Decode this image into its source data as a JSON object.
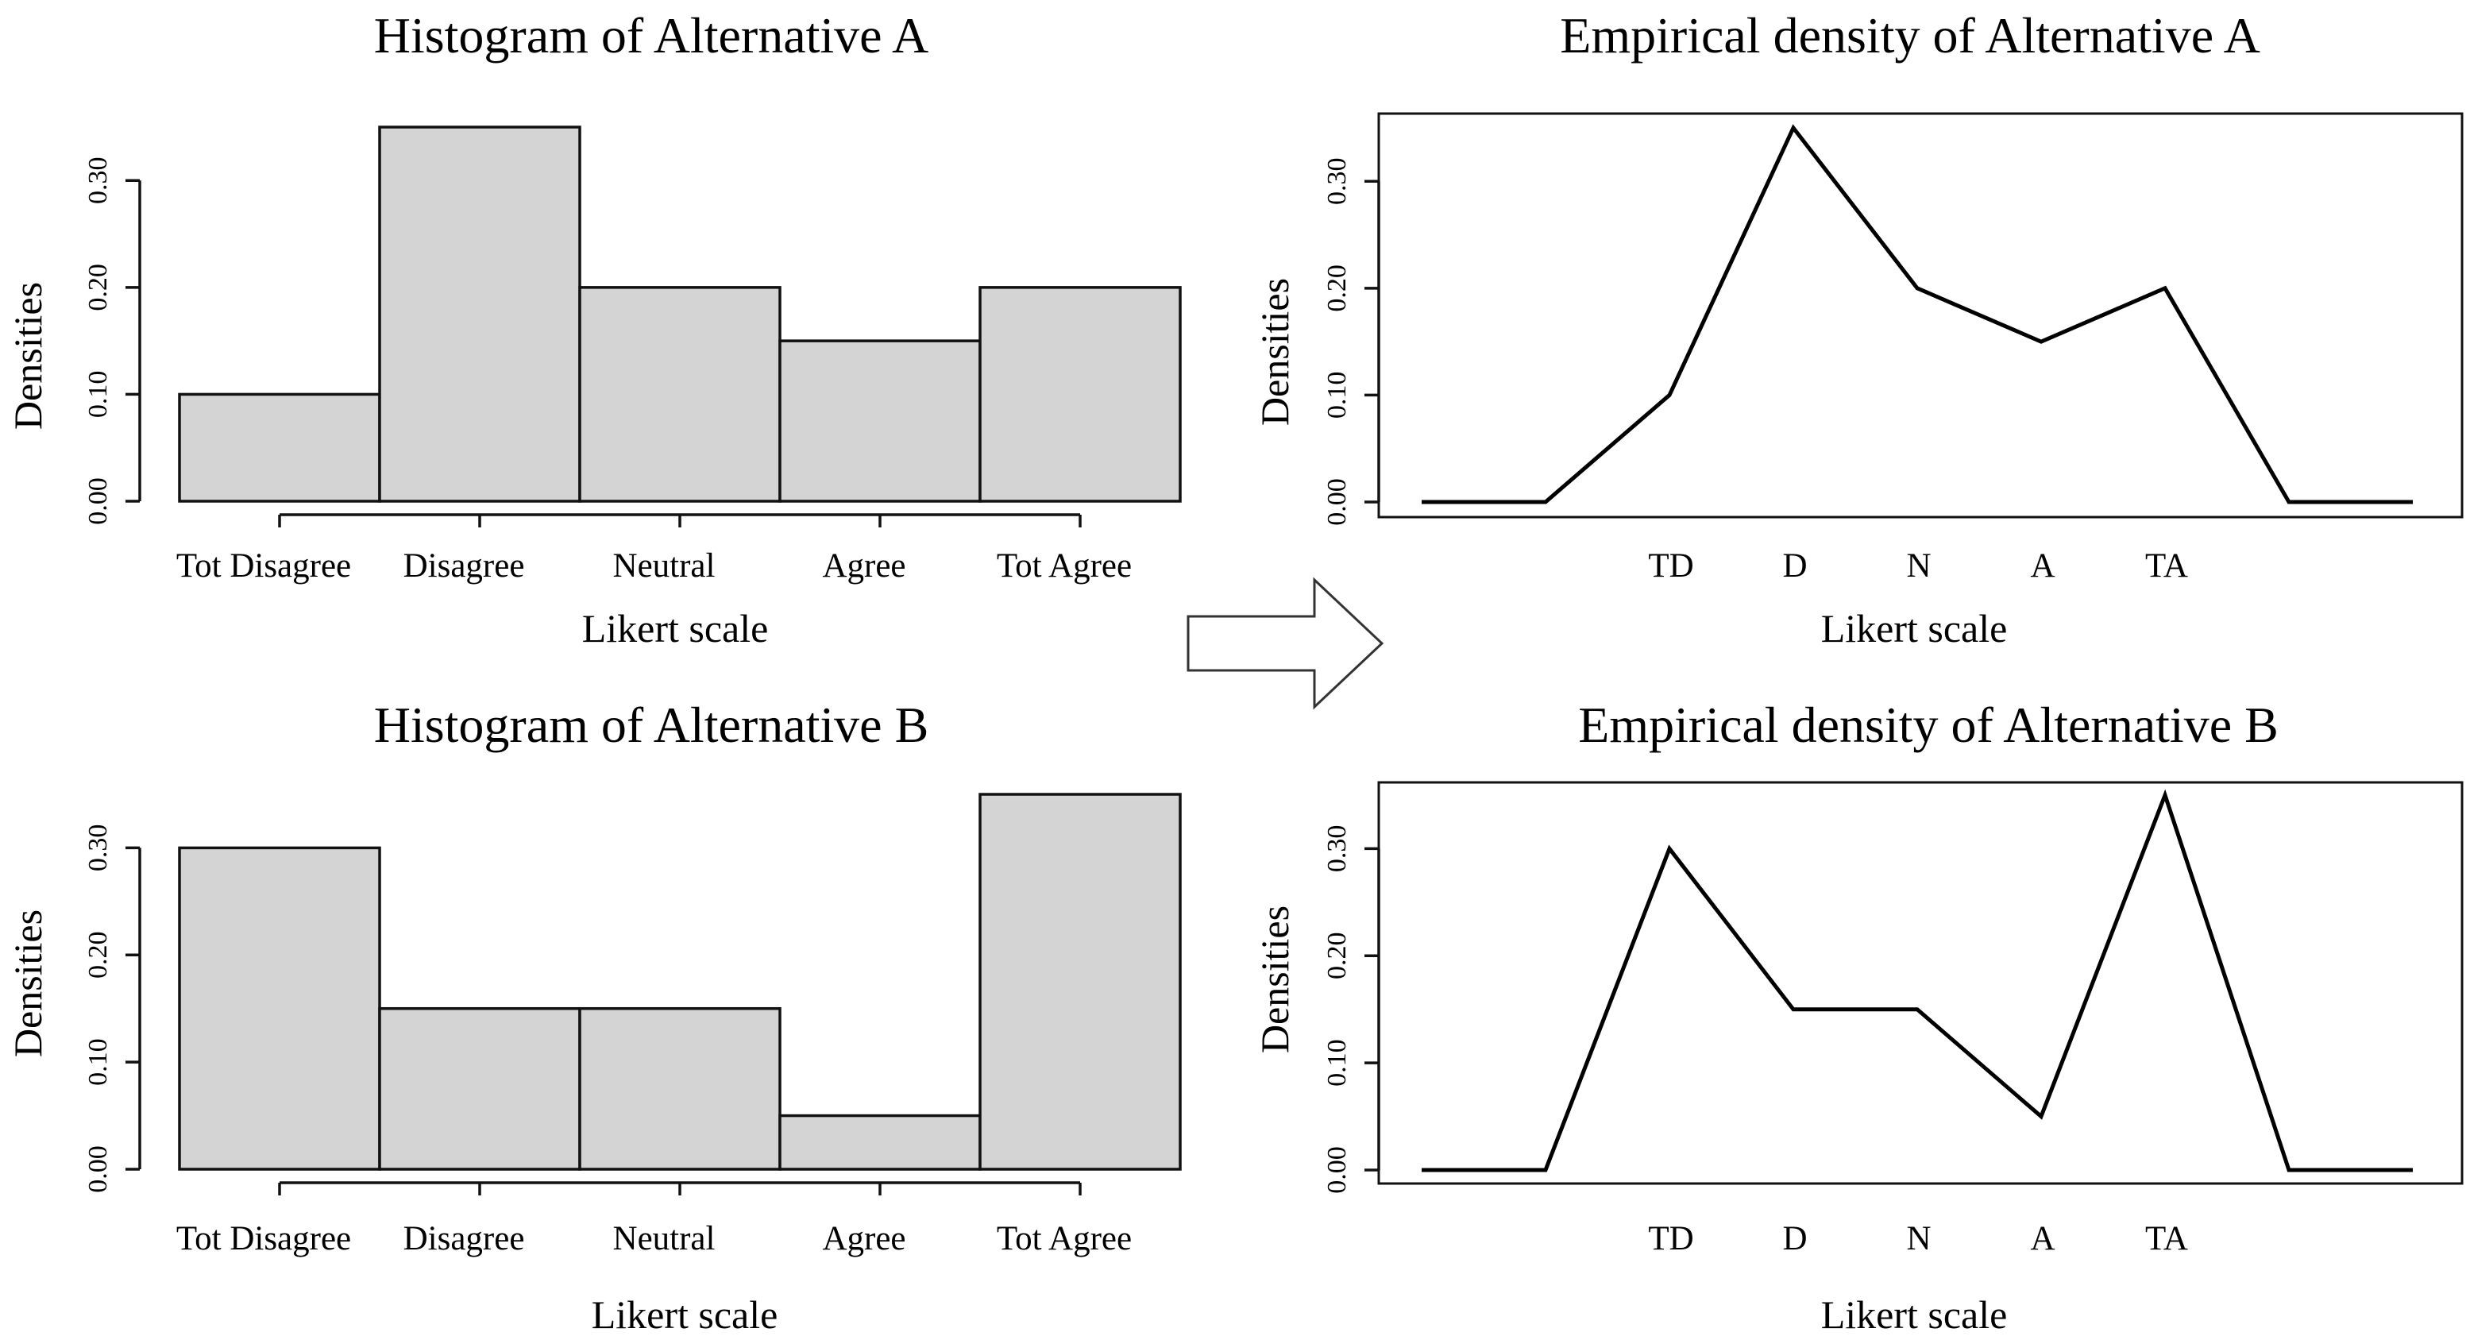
{
  "chart_data": [
    {
      "type": "bar",
      "title": "Histogram of Alternative A",
      "xlabel": "Likert scale",
      "ylabel": "Densities",
      "categories": [
        "Tot Disagree",
        "Disagree",
        "Neutral",
        "Agree",
        "Tot Agree"
      ],
      "values": [
        0.1,
        0.35,
        0.2,
        0.15,
        0.2
      ],
      "yticks": [
        "0.00",
        "0.10",
        "0.20",
        "0.30"
      ],
      "ylim": [
        0,
        0.35
      ],
      "fill_color": "#d4d4d4"
    },
    {
      "type": "line",
      "title": "Empirical density of Alternative A",
      "xlabel": "Likert scale",
      "ylabel": "Densities",
      "categories": [
        "",
        "",
        "TD",
        "D",
        "N",
        "A",
        "TA",
        "",
        ""
      ],
      "values": [
        0,
        0,
        0.1,
        0.35,
        0.2,
        0.15,
        0.2,
        0,
        0
      ],
      "yticks": [
        "0.00",
        "0.10",
        "0.20",
        "0.30"
      ],
      "ylim": [
        0,
        0.35
      ],
      "line_color": "#000000"
    },
    {
      "type": "bar",
      "title": "Histogram of Alternative B",
      "xlabel": "Likert scale",
      "ylabel": "Densities",
      "categories": [
        "Tot Disagree",
        "Disagree",
        "Neutral",
        "Agree",
        "Tot Agree"
      ],
      "values": [
        0.3,
        0.15,
        0.15,
        0.05,
        0.35
      ],
      "yticks": [
        "0.00",
        "0.10",
        "0.20",
        "0.30"
      ],
      "ylim": [
        0,
        0.35
      ],
      "fill_color": "#d4d4d4"
    },
    {
      "type": "line",
      "title": "Empirical density of Alternative B",
      "xlabel": "Likert scale",
      "ylabel": "Densities",
      "categories": [
        "",
        "",
        "TD",
        "D",
        "N",
        "A",
        "TA",
        "",
        ""
      ],
      "values": [
        0,
        0,
        0.3,
        0.15,
        0.15,
        0.05,
        0.35,
        0,
        0
      ],
      "yticks": [
        "0.00",
        "0.10",
        "0.20",
        "0.30"
      ],
      "ylim": [
        0,
        0.35
      ],
      "line_color": "#000000"
    }
  ],
  "arrow": {
    "icon": "right-arrow-icon"
  }
}
